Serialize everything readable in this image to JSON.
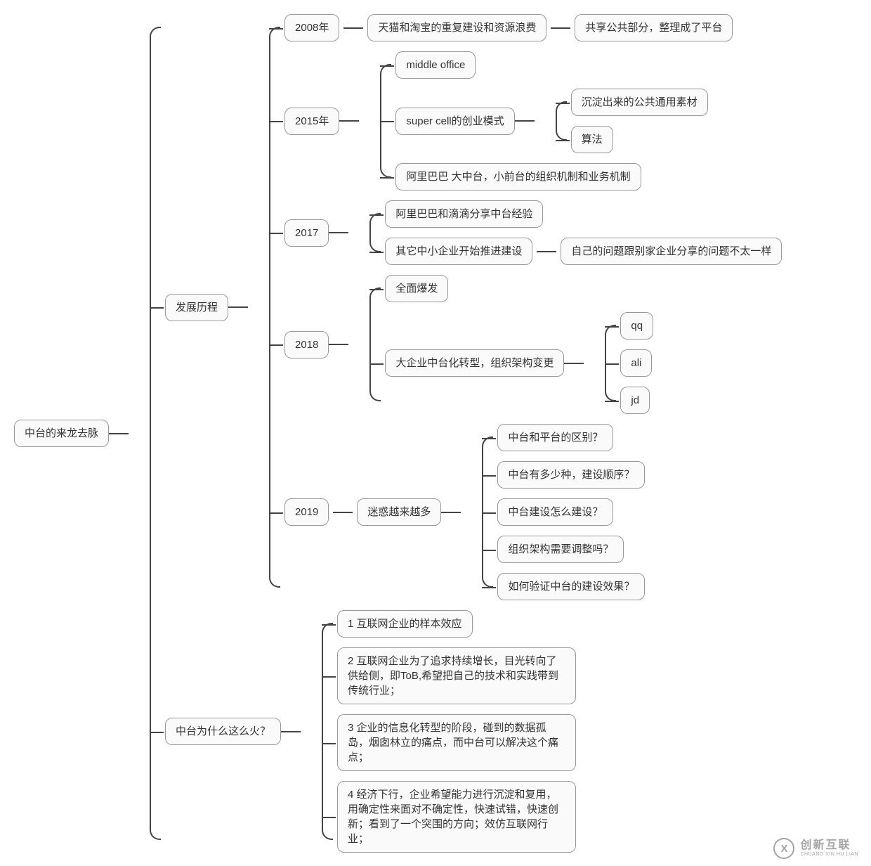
{
  "type": "mindmap",
  "styling": {
    "background_color": "#ffffff",
    "node_border_color": "#999999",
    "node_fill_color": "#fafafa",
    "node_text_color": "#333333",
    "node_border_radius": 10,
    "node_font_size": 15,
    "connector_color": "#444444",
    "connector_width": 2,
    "bracket_radius": 14,
    "h_gap": 30,
    "v_gap": 14
  },
  "root": {
    "label": "中台的来龙去脉",
    "children": [
      {
        "label": "发展历程",
        "children": [
          {
            "label": "2008年",
            "chain": [
              "天猫和淘宝的重复建设和资源浪费",
              "共享公共部分，整理成了平台"
            ]
          },
          {
            "label": "2015年",
            "children": [
              {
                "label": "middle office"
              },
              {
                "label": "super cell的创业模式",
                "children": [
                  {
                    "label": "沉淀出来的公共通用素材"
                  },
                  {
                    "label": "算法"
                  }
                ]
              },
              {
                "label": "阿里巴巴 大中台，小前台的组织机制和业务机制"
              }
            ]
          },
          {
            "label": "2017",
            "children": [
              {
                "label": "阿里巴巴和滴滴分享中台经验"
              },
              {
                "label": "其它中小企业开始推进建设",
                "chain": [
                  "自己的问题跟别家企业分享的问题不太一样"
                ]
              }
            ]
          },
          {
            "label": "2018",
            "children": [
              {
                "label": "全面爆发"
              },
              {
                "label": "大企业中台化转型，组织架构变更",
                "children": [
                  {
                    "label": "qq"
                  },
                  {
                    "label": "ali"
                  },
                  {
                    "label": "jd"
                  }
                ]
              }
            ]
          },
          {
            "label": "2019",
            "chain_to_children": "迷惑越来越多",
            "grandchildren": [
              {
                "label": "中台和平台的区别？"
              },
              {
                "label": "中台有多少种，建设顺序？"
              },
              {
                "label": "中台建设怎么建设？"
              },
              {
                "label": "组织架构需要调整吗？"
              },
              {
                "label": "如何验证中台的建设效果？"
              }
            ]
          }
        ]
      },
      {
        "label": "中台为什么这么火？",
        "children": [
          {
            "label": "1 互联网企业的样本效应"
          },
          {
            "label": "2 互联网企业为了追求持续增长，目光转向了供给侧，即ToB,希望把自己的技术和实践带到传统行业；",
            "wrap": true
          },
          {
            "label": "3 企业的信息化转型的阶段，碰到的数据孤岛，烟囱林立的痛点，而中台可以解决这个痛点；",
            "wrap": true
          },
          {
            "label": "4 经济下行，企业希望能力进行沉淀和复用，用确定性来面对不确定性，快速试错，快速创新；看到了一个突围的方向；效仿互联网行业；",
            "wrap": true
          }
        ]
      }
    ]
  },
  "watermark": {
    "logo_letter": "X",
    "text_main": "创新互联",
    "text_sub": "CHUANG XIN HU LIAN",
    "color": "#888888"
  }
}
